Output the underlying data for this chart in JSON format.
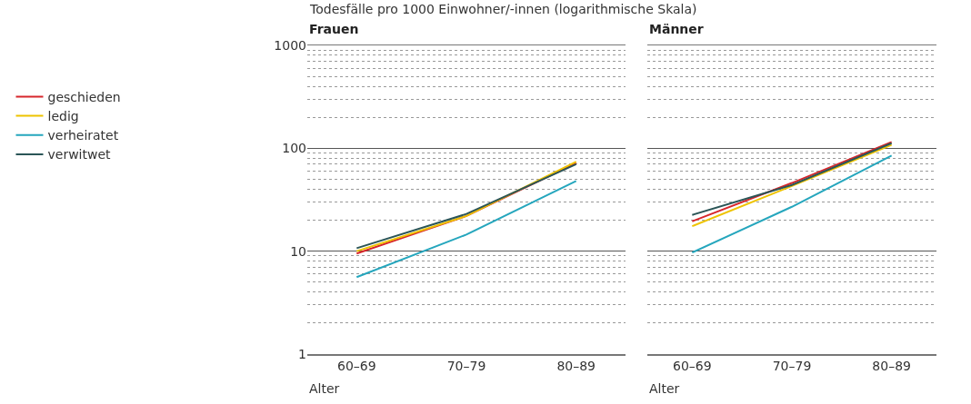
{
  "chart_data": [
    {
      "type": "line",
      "ylabel": "Todesfälle pro 1000 Einwohner/-innen (logarithmische Skala)",
      "title": "Frauen",
      "xlabel": "Alter",
      "categories": [
        "60–69",
        "70–79",
        "80–89"
      ],
      "log": true,
      "ylim": [
        1,
        1000
      ],
      "yticks": [
        1,
        10,
        100,
        1000
      ],
      "grid": "y",
      "legend": "left",
      "marker": "none",
      "line_style": "solid",
      "series": [
        {
          "name": "geschieden",
          "color": "#d7262b",
          "values": [
            9.5,
            22,
            72
          ]
        },
        {
          "name": "ledig",
          "color": "#eec300",
          "values": [
            10,
            22,
            74
          ]
        },
        {
          "name": "verheiratet",
          "color": "#25a6bd",
          "values": [
            5.6,
            14.5,
            48
          ]
        },
        {
          "name": "verwitwet",
          "color": "#2b5557",
          "values": [
            10.7,
            23,
            70
          ]
        }
      ]
    },
    {
      "type": "line",
      "title": "Männer",
      "xlabel": "Alter",
      "categories": [
        "60–69",
        "70–79",
        "80–89"
      ],
      "log": true,
      "ylim": [
        1,
        1000
      ],
      "yticks": [
        1,
        10,
        100,
        1000
      ],
      "grid": "y",
      "legend": false,
      "marker": "none",
      "line_style": "solid",
      "tick_labels": "x",
      "series": [
        {
          "color": "#d7262b",
          "values": [
            19.5,
            46,
            115
          ]
        },
        {
          "color": "#eec300",
          "values": [
            17.5,
            43,
            108
          ]
        },
        {
          "color": "#25a6bd",
          "values": [
            9.7,
            27,
            85
          ]
        },
        {
          "color": "#2b5557",
          "values": [
            22.5,
            44,
            112
          ]
        }
      ]
    }
  ]
}
